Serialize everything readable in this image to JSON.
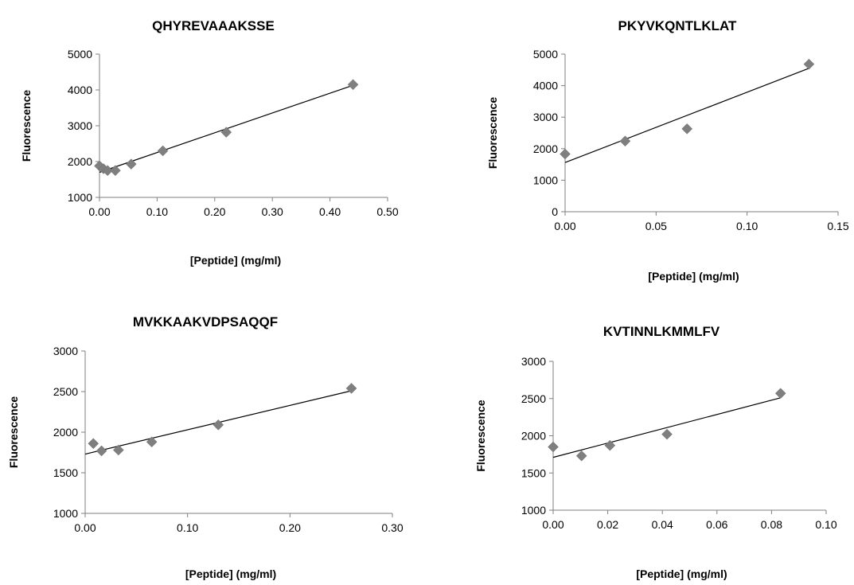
{
  "chart_data": [
    {
      "type": "scatter",
      "title": "QHYREVAAAKSSE",
      "xlabel": "[Peptide] (mg/ml)",
      "ylabel": "Fluorescence",
      "xlim": [
        0,
        0.5
      ],
      "ylim": [
        1000,
        5000
      ],
      "xticks": [
        "0.00",
        "0.10",
        "0.20",
        "0.30",
        "0.40",
        "0.50"
      ],
      "yticks": [
        "1000",
        "2000",
        "3000",
        "4000",
        "5000"
      ],
      "grid": false,
      "marker_color": "#7f7f7f",
      "points": [
        {
          "x": 0.0,
          "y": 1880
        },
        {
          "x": 0.007,
          "y": 1800
        },
        {
          "x": 0.014,
          "y": 1750
        },
        {
          "x": 0.0275,
          "y": 1750
        },
        {
          "x": 0.055,
          "y": 1930
        },
        {
          "x": 0.11,
          "y": 2300
        },
        {
          "x": 0.22,
          "y": 2820
        },
        {
          "x": 0.44,
          "y": 4150
        }
      ],
      "trendline": {
        "x": [
          0.0,
          0.44
        ],
        "y": [
          1700,
          4130
        ]
      }
    },
    {
      "type": "scatter",
      "title": "PKYVKQNTLKLAT",
      "xlabel": "[Peptide] (mg/ml)",
      "ylabel": "Fluorescence",
      "xlim": [
        0,
        0.15
      ],
      "ylim": [
        0,
        5000
      ],
      "xticks": [
        "0.00",
        "0.05",
        "0.10",
        "0.15"
      ],
      "yticks": [
        "0",
        "1000",
        "2000",
        "3000",
        "4000",
        "5000"
      ],
      "grid": false,
      "marker_color": "#7f7f7f",
      "points": [
        {
          "x": 0.0,
          "y": 1830
        },
        {
          "x": 0.033,
          "y": 2240
        },
        {
          "x": 0.067,
          "y": 2630
        },
        {
          "x": 0.134,
          "y": 4680
        }
      ],
      "trendline": {
        "x": [
          0.0,
          0.134
        ],
        "y": [
          1560,
          4550
        ]
      }
    },
    {
      "type": "scatter",
      "title": "MVKKAAKVDPSAQQF",
      "xlabel": "[Peptide] (mg/ml)",
      "ylabel": "Fluorescence",
      "xlim": [
        0,
        0.3
      ],
      "ylim": [
        1000,
        3000
      ],
      "xticks": [
        "0.00",
        "0.10",
        "0.20",
        "0.30"
      ],
      "yticks": [
        "1000",
        "1500",
        "2000",
        "2500",
        "3000"
      ],
      "grid": false,
      "marker_color": "#7f7f7f",
      "points": [
        {
          "x": 0.008,
          "y": 1860
        },
        {
          "x": 0.016,
          "y": 1770
        },
        {
          "x": 0.0325,
          "y": 1780
        },
        {
          "x": 0.065,
          "y": 1880
        },
        {
          "x": 0.13,
          "y": 2090
        },
        {
          "x": 0.26,
          "y": 2540
        }
      ],
      "trendline": {
        "x": [
          0.0,
          0.26
        ],
        "y": [
          1730,
          2510
        ]
      }
    },
    {
      "type": "scatter",
      "title": "KVTINNLKMMLFV",
      "xlabel": "[Peptide] (mg/ml)",
      "ylabel": "Fluorescence",
      "xlim": [
        0,
        0.1
      ],
      "ylim": [
        1000,
        3000
      ],
      "xticks": [
        "0.00",
        "0.02",
        "0.04",
        "0.06",
        "0.08",
        "0.10"
      ],
      "yticks": [
        "1000",
        "1500",
        "2000",
        "2500",
        "3000"
      ],
      "grid": false,
      "marker_color": "#7f7f7f",
      "points": [
        {
          "x": 0.0,
          "y": 1850
        },
        {
          "x": 0.0104,
          "y": 1730
        },
        {
          "x": 0.0208,
          "y": 1870
        },
        {
          "x": 0.0417,
          "y": 2020
        },
        {
          "x": 0.0833,
          "y": 2570
        }
      ],
      "trendline": {
        "x": [
          0.0,
          0.0833
        ],
        "y": [
          1710,
          2510
        ]
      }
    }
  ]
}
